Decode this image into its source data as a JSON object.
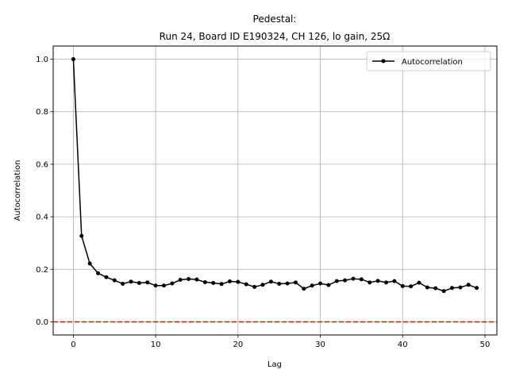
{
  "chart_data": {
    "type": "line",
    "title_lines": [
      "Pedestal:",
      "Run 24, Board ID E190324, CH 126, lo gain, 25Ω"
    ],
    "xlabel": "Lag",
    "ylabel": "Autocorrelation",
    "xlim": [
      -2.45,
      51.45
    ],
    "ylim": [
      -0.05,
      1.05
    ],
    "xticks": [
      0,
      10,
      20,
      30,
      40,
      50
    ],
    "yticks": [
      0.0,
      0.2,
      0.4,
      0.6,
      0.8,
      1.0
    ],
    "xtick_labels": [
      "0",
      "10",
      "20",
      "30",
      "40",
      "50"
    ],
    "ytick_labels": [
      "0.0",
      "0.2",
      "0.4",
      "0.6",
      "0.8",
      "1.0"
    ],
    "grid": true,
    "legend_position": "top-right",
    "series": [
      {
        "name": "Autocorrelation",
        "color": "#000000",
        "marker": "dot",
        "x": [
          0,
          1,
          2,
          3,
          4,
          5,
          6,
          7,
          8,
          9,
          10,
          11,
          12,
          13,
          14,
          15,
          16,
          17,
          18,
          19,
          20,
          21,
          22,
          23,
          24,
          25,
          26,
          27,
          28,
          29,
          30,
          31,
          32,
          33,
          34,
          35,
          36,
          37,
          38,
          39,
          40,
          41,
          42,
          43,
          44,
          45,
          46,
          47,
          48,
          49
        ],
        "values": [
          1.0,
          0.327,
          0.222,
          0.185,
          0.17,
          0.158,
          0.145,
          0.153,
          0.148,
          0.15,
          0.138,
          0.138,
          0.146,
          0.16,
          0.163,
          0.161,
          0.151,
          0.148,
          0.144,
          0.154,
          0.152,
          0.143,
          0.133,
          0.141,
          0.153,
          0.145,
          0.146,
          0.15,
          0.126,
          0.138,
          0.146,
          0.14,
          0.155,
          0.158,
          0.164,
          0.162,
          0.15,
          0.156,
          0.15,
          0.155,
          0.136,
          0.135,
          0.149,
          0.131,
          0.128,
          0.117,
          0.129,
          0.131,
          0.141,
          0.129
        ]
      }
    ],
    "reference_line": {
      "y": 0.0,
      "color": "#ff0000",
      "style": "dashed"
    }
  }
}
